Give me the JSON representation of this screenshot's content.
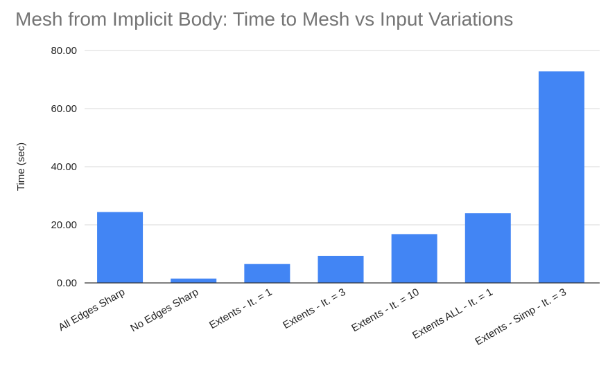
{
  "chart_data": {
    "type": "bar",
    "title": "Mesh from Implicit Body: Time to Mesh vs Input Variations",
    "xlabel": "",
    "ylabel": "Time (sec)",
    "ylim": [
      0,
      80
    ],
    "yticks": [
      "0.00",
      "20.00",
      "40.00",
      "60.00",
      "80.00"
    ],
    "grid": true,
    "legend": "none",
    "bar_color": "#4285f4",
    "categories": [
      "All Edges Sharp",
      "No Edges Sharp",
      "Extents - It. = 1",
      "Extents - It. = 3",
      "Extents - It. = 10",
      "Extents ALL - It. = 1",
      "Extents - Simp - It. = 3"
    ],
    "values": [
      24.4,
      1.5,
      6.5,
      9.3,
      16.8,
      24.0,
      72.8
    ]
  }
}
